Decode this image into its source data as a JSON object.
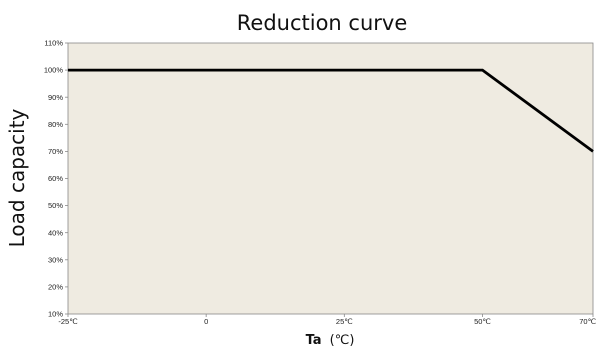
{
  "chart_data": {
    "type": "line",
    "title": "Reduction curve",
    "ylabel": "Load capacity",
    "xlabel": {
      "main": "Ta",
      "unit": "(℃)"
    },
    "x_tick_labels": [
      "-25℃",
      "0",
      "25℃",
      "50℃",
      "70℃"
    ],
    "x_tick_values": [
      -25,
      0,
      25,
      50,
      70
    ],
    "y_tick_labels": [
      "10%",
      "20%",
      "30%",
      "40%",
      "50%",
      "60%",
      "70%",
      "80%",
      "90%",
      "100%",
      "110%"
    ],
    "y_tick_values": [
      10,
      20,
      30,
      40,
      50,
      60,
      70,
      80,
      90,
      100,
      110
    ],
    "xlim": [
      -25,
      70
    ],
    "ylim": [
      10,
      110
    ],
    "grid": false,
    "series": [
      {
        "x": [
          -25,
          50,
          70
        ],
        "y": [
          100,
          100,
          70
        ]
      }
    ],
    "colors": {
      "plot_bg": "#efebe1",
      "line": "#000000",
      "axis": "#888888"
    }
  }
}
